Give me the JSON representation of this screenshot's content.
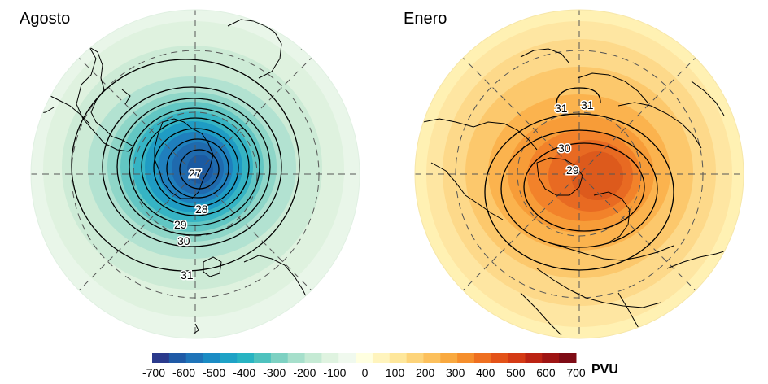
{
  "panels": [
    {
      "title": "Agosto",
      "scheme": "negative",
      "contour_labels": [
        "27",
        "28",
        "29",
        "30",
        "31"
      ]
    },
    {
      "title": "Enero",
      "scheme": "positive",
      "contour_labels": [
        "29",
        "30",
        "31",
        "31"
      ]
    }
  ],
  "colorbar": {
    "ticks": [
      "-700",
      "-600",
      "-500",
      "-400",
      "-300",
      "-200",
      "-100",
      "0",
      "100",
      "200",
      "300",
      "400",
      "500",
      "600",
      "700"
    ],
    "unit": "PVU",
    "colors": [
      "#2b3a8c",
      "#1f5aa6",
      "#1f74b8",
      "#1b8cc4",
      "#1ea2c6",
      "#28b4c2",
      "#4ec2be",
      "#7dd1c2",
      "#a6dfcb",
      "#c5ead4",
      "#dff3e0",
      "#f0f9ee",
      "#ffffe0",
      "#fff4bd",
      "#fee79b",
      "#fdd47a",
      "#fcc05c",
      "#f9a93f",
      "#f58e2c",
      "#ee6f20",
      "#e35218",
      "#d43a14",
      "#bb2313",
      "#9e1413",
      "#7e0b15"
    ]
  }
}
